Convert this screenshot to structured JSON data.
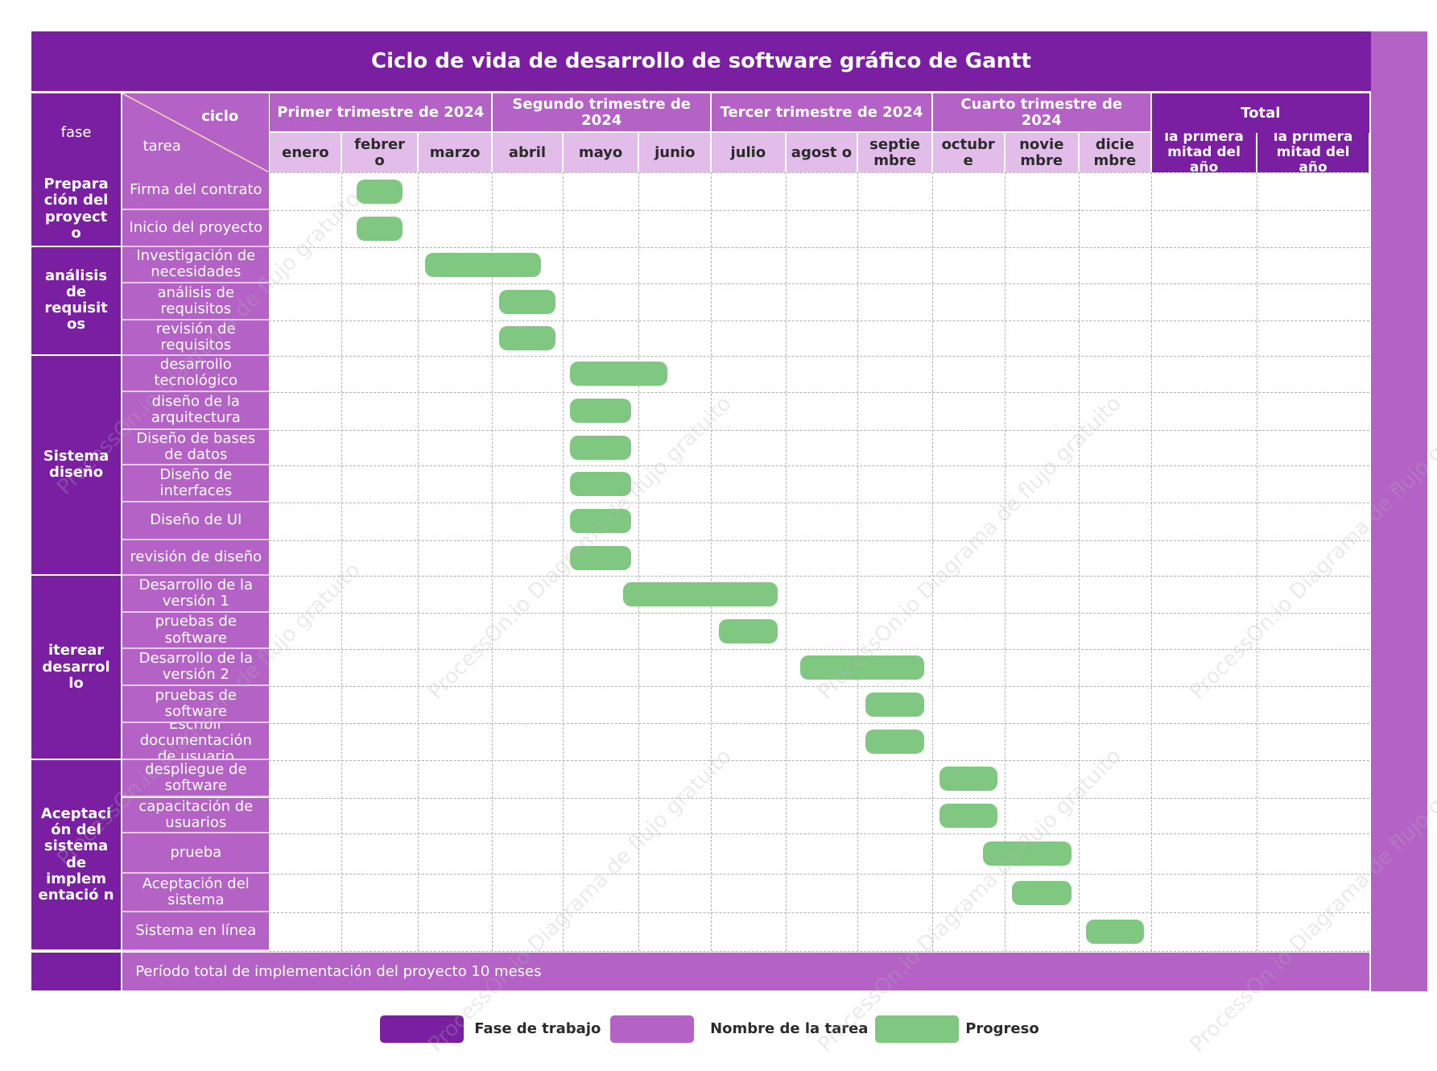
{
  "title": "Ciclo de vida de desarrollo de software gráfico de Gantt",
  "header": {
    "fase": "fase",
    "ciclo": "ciclo",
    "tarea": "tarea",
    "total": "Total"
  },
  "quarters": [
    {
      "label": "Primer trimestre de 2024",
      "months": 3
    },
    {
      "label": "Segundo trimestre de 2024",
      "months": 3
    },
    {
      "label": "Tercer trimestre de 2024",
      "months": 3
    },
    {
      "label": "Cuarto trimestre de 2024",
      "months": 3
    }
  ],
  "months": [
    "enero",
    "febrer o",
    "marzo",
    "abril",
    "mayo",
    "junio",
    "julio",
    "agost o",
    "septie mbre",
    "octubr e",
    "novie mbre",
    "dicie mbre"
  ],
  "total_columns": [
    "la primera mitad del año",
    "la primera mitad del año"
  ],
  "chart_data": {
    "type": "gantt",
    "time_unit": "month (1 = enero ... 12 = diciembre)",
    "phases": [
      {
        "name": "Prepara ción del proyect o",
        "tasks": [
          {
            "name": "Firma del contrato",
            "start": 2.2,
            "end": 2.8
          },
          {
            "name": "Inicio del proyecto",
            "start": 2.2,
            "end": 2.8
          }
        ]
      },
      {
        "name": "análisis de requisit os",
        "tasks": [
          {
            "name": "Investigación de necesidades",
            "start": 3.1,
            "end": 4.7
          },
          {
            "name": "análisis de requisitos",
            "start": 4.1,
            "end": 4.9
          },
          {
            "name": "revisión de requisitos",
            "start": 4.1,
            "end": 4.9
          }
        ]
      },
      {
        "name": "Sistema diseño",
        "tasks": [
          {
            "name": "desarrollo tecnológico",
            "start": 5.1,
            "end": 6.4
          },
          {
            "name": "diseño de la arquitectura",
            "start": 5.1,
            "end": 5.9
          },
          {
            "name": "Diseño de bases de datos",
            "start": 5.1,
            "end": 5.9
          },
          {
            "name": "Diseño de interfaces",
            "start": 5.1,
            "end": 5.9
          },
          {
            "name": "Diseño de UI",
            "start": 5.1,
            "end": 5.9
          },
          {
            "name": "revisión de diseño",
            "start": 5.1,
            "end": 5.9
          }
        ]
      },
      {
        "name": "iterear desarrol lo",
        "tasks": [
          {
            "name": "Desarrollo de la versión 1",
            "start": 5.8,
            "end": 7.9
          },
          {
            "name": "pruebas de software",
            "start": 7.1,
            "end": 7.9
          },
          {
            "name": "Desarrollo de la versión 2",
            "start": 8.2,
            "end": 9.9
          },
          {
            "name": "pruebas de software",
            "start": 9.1,
            "end": 9.9
          },
          {
            "name": "Escribir documentación de usuario",
            "start": 9.1,
            "end": 9.9
          }
        ]
      },
      {
        "name": "Aceptaci ón del sistema de implem entació n",
        "tasks": [
          {
            "name": "despliegue de software",
            "start": 10.1,
            "end": 10.9
          },
          {
            "name": "capacitación de usuarios",
            "start": 10.1,
            "end": 10.9
          },
          {
            "name": "prueba",
            "start": 10.7,
            "end": 11.9
          },
          {
            "name": "Aceptación del sistema",
            "start": 11.1,
            "end": 11.9
          },
          {
            "name": "Sistema en línea",
            "start": 12.1,
            "end": 12.9
          }
        ]
      }
    ]
  },
  "footer": {
    "text": "Período total de implementación del proyecto 10 meses"
  },
  "legend": [
    {
      "label": "Fase de trabajo",
      "color": "#7a1fa2"
    },
    {
      "label": "Nombre de la tarea",
      "color": "#b462c6"
    },
    {
      "label": "Progreso",
      "color": "#80c882"
    }
  ],
  "watermark": "ProcessOn.io Diagrama de flujo gratuito",
  "colors": {
    "phase": "#7a1fa2",
    "task": "#b462c6",
    "month": "#e3bdea",
    "bar": "#80c882"
  }
}
